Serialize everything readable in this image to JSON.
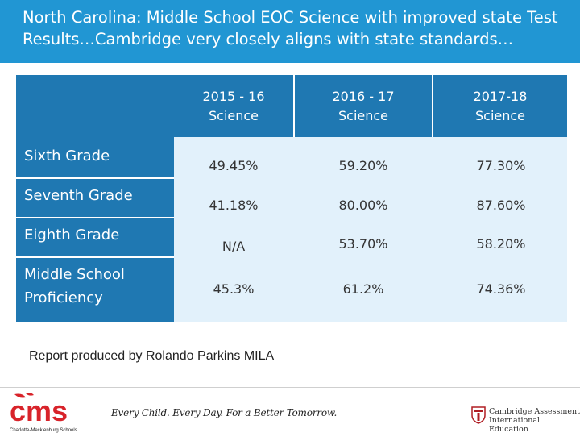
{
  "header": {
    "title_line1": "North Carolina: Middle School EOC Science with improved state Test",
    "title_line2": "Results…Cambridge very closely aligns with state standards…"
  },
  "table": {
    "columns": [
      {
        "line1": "2015 - 16",
        "line2": "Science"
      },
      {
        "line1": "2016 - 17",
        "line2": "Science"
      },
      {
        "line1": "2017-18",
        "line2": "Science"
      }
    ],
    "rows": [
      {
        "label_line1": "Sixth Grade",
        "label_line2": "",
        "values": [
          "49.45%",
          "59.20%",
          "77.30%"
        ]
      },
      {
        "label_line1": "Seventh Grade",
        "label_line2": "",
        "values": [
          "41.18%",
          "80.00%",
          "87.60%"
        ]
      },
      {
        "label_line1": "Eighth Grade",
        "label_line2": "",
        "values": [
          "N/A",
          "53.70%",
          "58.20%"
        ]
      },
      {
        "label_line1": "Middle School",
        "label_line2": "Proficiency",
        "values": [
          "45.3%",
          "61.2%",
          "74.36%"
        ]
      }
    ]
  },
  "footer": {
    "note": "Report produced by Rolando Parkins MILA",
    "cms_logo_text": "cms",
    "cms_logo_sub": "Charlotte-Mecklenburg Schools",
    "tagline": "Every Child. Every Day. For a Better Tomorrow.",
    "cambridge_line1": "Cambridge Assessment",
    "cambridge_line2": "International Education"
  },
  "colors": {
    "title_bar": "#2196d3",
    "header_cells": "#1f78b2",
    "body_cells": "#e2f1fb",
    "cms_red": "#d8232a"
  }
}
